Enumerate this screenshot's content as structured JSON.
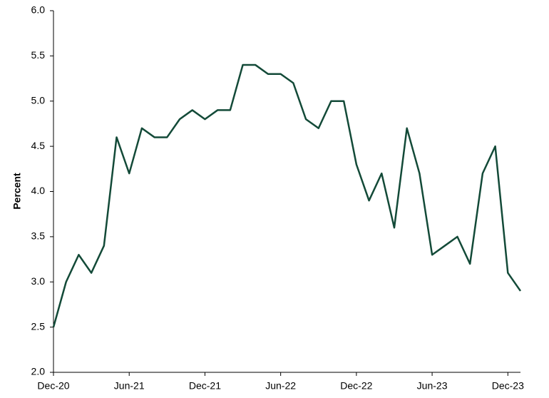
{
  "chart_data": {
    "type": "line",
    "y_label": "Percent",
    "categories": [
      "Dec-20",
      null,
      null,
      null,
      null,
      null,
      "Jun-21",
      null,
      null,
      null,
      null,
      null,
      "Dec-21",
      null,
      null,
      null,
      null,
      null,
      "Jun-22",
      null,
      null,
      null,
      null,
      null,
      "Dec-22",
      null,
      null,
      null,
      null,
      null,
      "Jun-23",
      null,
      null,
      null,
      null,
      null,
      "Dec-23",
      null
    ],
    "series": [
      {
        "color": "#134a38",
        "values": [
          2.5,
          3.0,
          3.3,
          3.1,
          3.4,
          4.6,
          4.2,
          4.7,
          4.6,
          4.6,
          4.8,
          4.9,
          4.8,
          4.9,
          4.9,
          5.4,
          5.4,
          5.3,
          5.3,
          5.2,
          4.8,
          4.7,
          5.0,
          5.0,
          4.3,
          3.9,
          4.2,
          3.6,
          4.7,
          4.2,
          3.3,
          3.4,
          3.5,
          3.2,
          4.2,
          4.5,
          3.1,
          2.9
        ]
      }
    ],
    "ylim": [
      2.0,
      6.0
    ],
    "yticks": [
      {
        "value": 2,
        "label": "2.0"
      },
      {
        "value": 2.5,
        "label": "2.5"
      },
      {
        "value": 3,
        "label": "3.0"
      },
      {
        "value": 3.5,
        "label": "3.5"
      },
      {
        "value": 4,
        "label": "4.0"
      },
      {
        "value": 4.5,
        "label": "4.5"
      },
      {
        "value": 5,
        "label": "5.0"
      },
      {
        "value": 5.5,
        "label": "5.5"
      },
      {
        "value": 6,
        "label": "6.0"
      }
    ],
    "grid": false
  }
}
